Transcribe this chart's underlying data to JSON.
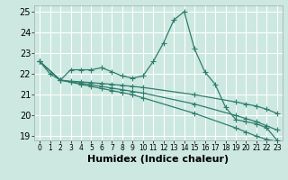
{
  "title": "",
  "xlabel": "Humidex (Indice chaleur)",
  "background_color": "#cce8e0",
  "grid_color": "#ffffff",
  "line_color": "#2e7d6e",
  "xlim": [
    -0.5,
    23.5
  ],
  "ylim": [
    18.8,
    25.3
  ],
  "yticks": [
    19,
    20,
    21,
    22,
    23,
    24,
    25
  ],
  "xticks": [
    0,
    1,
    2,
    3,
    4,
    5,
    6,
    7,
    8,
    9,
    10,
    11,
    12,
    13,
    14,
    15,
    16,
    17,
    18,
    19,
    20,
    21,
    22,
    23
  ],
  "series_main": {
    "x": [
      0,
      1,
      2,
      3,
      4,
      5,
      6,
      7,
      8,
      9,
      10,
      11,
      12,
      13,
      14,
      15,
      16,
      17,
      18,
      19,
      20,
      21,
      22,
      23
    ],
    "y": [
      22.6,
      22.0,
      21.7,
      22.2,
      22.2,
      22.2,
      22.3,
      22.1,
      21.9,
      21.8,
      21.9,
      22.6,
      23.5,
      24.6,
      25.0,
      23.2,
      22.1,
      21.5,
      20.4,
      19.8,
      19.7,
      19.6,
      19.4,
      18.8
    ]
  },
  "series_reg": [
    {
      "x": [
        0,
        2,
        3,
        4,
        5,
        6,
        7,
        8,
        9,
        10,
        15,
        19,
        20,
        21,
        22,
        23
      ],
      "y": [
        22.6,
        21.7,
        21.65,
        21.62,
        21.58,
        21.54,
        21.5,
        21.45,
        21.4,
        21.35,
        21.0,
        20.65,
        20.55,
        20.45,
        20.3,
        20.1
      ]
    },
    {
      "x": [
        0,
        2,
        3,
        4,
        5,
        6,
        7,
        8,
        9,
        10,
        15,
        19,
        20,
        21,
        22,
        23
      ],
      "y": [
        22.6,
        21.7,
        21.62,
        21.55,
        21.48,
        21.4,
        21.32,
        21.24,
        21.16,
        21.08,
        20.55,
        20.0,
        19.85,
        19.7,
        19.5,
        19.3
      ]
    },
    {
      "x": [
        0,
        2,
        3,
        4,
        5,
        6,
        7,
        8,
        9,
        10,
        15,
        19,
        20,
        21,
        22,
        23
      ],
      "y": [
        22.6,
        21.7,
        21.6,
        21.5,
        21.4,
        21.3,
        21.2,
        21.1,
        21.0,
        20.85,
        20.1,
        19.4,
        19.2,
        19.0,
        18.85,
        18.75
      ]
    }
  ],
  "marker": "+",
  "markersize": 4,
  "linewidth": 0.9,
  "tick_fontsize": 7,
  "xlabel_fontsize": 8
}
